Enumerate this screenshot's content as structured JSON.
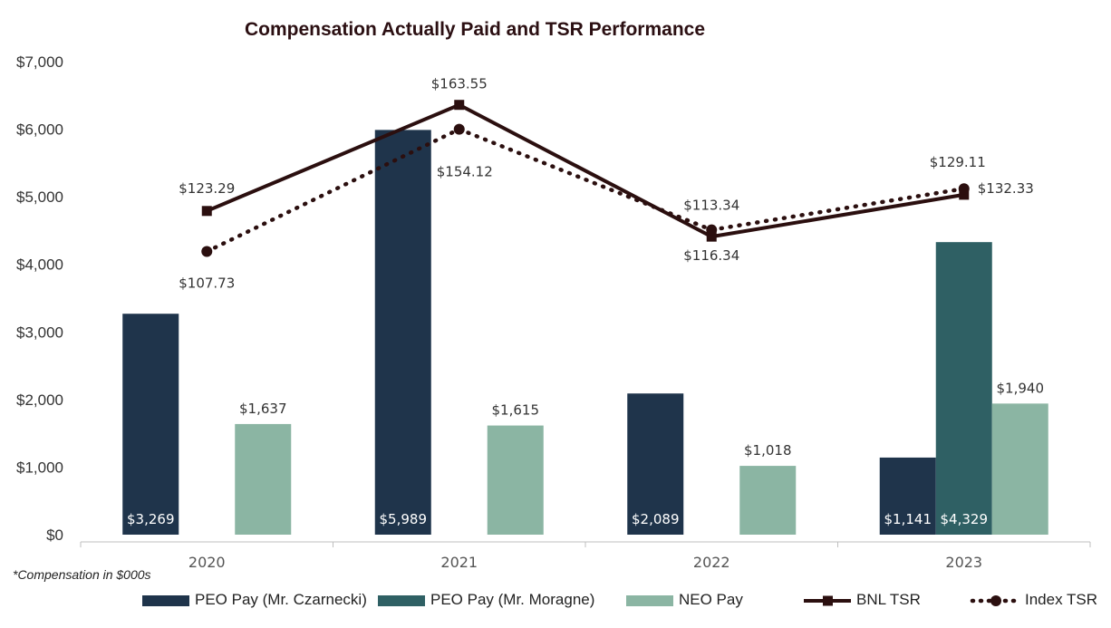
{
  "chart_data": {
    "type": "bar",
    "title": "Compensation Actually Paid and TSR Performance",
    "categories": [
      "2020",
      "2021",
      "2022",
      "2023"
    ],
    "ylim": [
      0,
      7000
    ],
    "yticks": [
      0,
      1000,
      2000,
      3000,
      4000,
      5000,
      6000,
      7000
    ],
    "ytick_labels": [
      "$0",
      "$1,000",
      "$2,000",
      "$3,000",
      "$4,000",
      "$5,000",
      "$6,000",
      "$7,000"
    ],
    "footnote": "*Compensation in $000s",
    "bar_series": [
      {
        "name": "PEO Pay (Mr. Czarnecki)",
        "color": "#1f344b",
        "values": [
          3269,
          5989,
          2089,
          1141
        ],
        "labels": [
          "$3,269",
          "$5,989",
          "$2,089",
          "$1,141"
        ]
      },
      {
        "name": "PEO Pay (Mr. Moragne)",
        "color": "#2f6064",
        "values": [
          null,
          null,
          null,
          4329
        ],
        "labels": [
          null,
          null,
          null,
          "$4,329"
        ]
      },
      {
        "name": "NEO Pay",
        "color": "#8bb5a3",
        "values": [
          1637,
          1615,
          1018,
          1940
        ],
        "labels": [
          "$1,637",
          "$1,615",
          "$1,018",
          "$1,940"
        ]
      }
    ],
    "line_series": [
      {
        "name": "BNL TSR",
        "color": "#2b0f0f",
        "style": "solid",
        "marker": "square",
        "values": [
          123.29,
          163.55,
          116.34,
          132.33
        ],
        "plot_values": [
          4790,
          6360,
          4410,
          5030
        ],
        "labels": [
          "$123.29",
          "$163.55",
          "$116.34",
          "$132.33"
        ]
      },
      {
        "name": "Index TSR",
        "color": "#2b0f0f",
        "style": "dotted",
        "marker": "circle",
        "values": [
          107.73,
          154.12,
          113.34,
          129.11
        ],
        "plot_values": [
          4190,
          6000,
          4510,
          5120
        ],
        "labels": [
          "$107.73",
          "$154.12",
          "$113.34",
          "$129.11"
        ]
      }
    ],
    "legend_position": "bottom"
  }
}
